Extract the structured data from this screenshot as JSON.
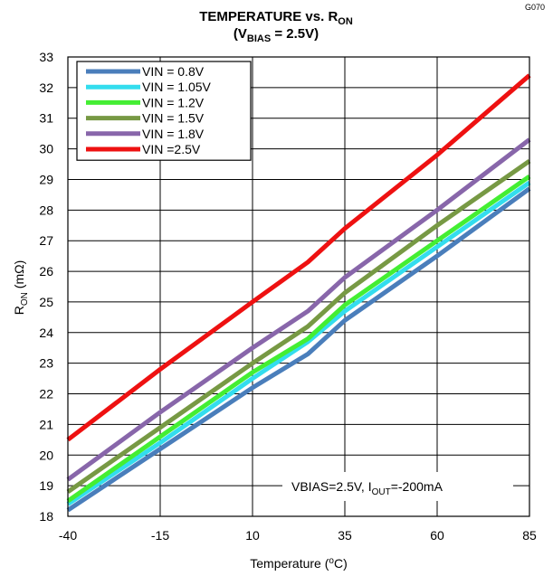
{
  "figure_id": "G070",
  "title_line1": "TEMPERATURE vs. R",
  "title_line1_sub": "ON",
  "title_line2_pre": "(V",
  "title_line2_sub": "BIAS",
  "title_line2_post": " = 2.5V)",
  "ylabel_main": "R",
  "ylabel_sub": "ON",
  "ylabel_post": " (mΩ)",
  "xlabel_pre": "Temperature (",
  "xlabel_sup": "o",
  "xlabel_post": "C)",
  "annotation": {
    "pre": "VBIAS=2.5V, I",
    "sub": "OUT",
    "post": "=-200mA"
  },
  "chart_data": {
    "type": "line",
    "title": "TEMPERATURE vs. RON (VBIAS = 2.5V)",
    "xlabel": "Temperature (oC)",
    "ylabel": "RON (mΩ)",
    "xlim": [
      -40,
      85
    ],
    "ylim": [
      18,
      33
    ],
    "x_ticks": [
      -40,
      -15,
      10,
      35,
      60,
      85
    ],
    "y_ticks": [
      18,
      19,
      20,
      21,
      22,
      23,
      24,
      25,
      26,
      27,
      28,
      29,
      30,
      31,
      32,
      33
    ],
    "grid": true,
    "legend_position": "top-left",
    "x": [
      -40,
      -15,
      10,
      25,
      35,
      60,
      85
    ],
    "series": [
      {
        "name": "VIN = 0.8V",
        "color": "#4A7EBB",
        "values": [
          18.2,
          20.2,
          22.2,
          23.3,
          24.4,
          26.5,
          28.7
        ]
      },
      {
        "name": "VIN = 1.05V",
        "color": "#33DDEE",
        "values": [
          18.4,
          20.4,
          22.5,
          23.7,
          24.7,
          26.8,
          28.9
        ]
      },
      {
        "name": "VIN = 1.2V",
        "color": "#44EE33",
        "values": [
          18.5,
          20.6,
          22.7,
          23.8,
          24.9,
          27.0,
          29.1
        ]
      },
      {
        "name": "VIN = 1.5V",
        "color": "#779944",
        "values": [
          18.8,
          20.9,
          23.0,
          24.2,
          25.3,
          27.5,
          29.6
        ]
      },
      {
        "name": "VIN = 1.8V",
        "color": "#8866AA",
        "values": [
          19.2,
          21.4,
          23.5,
          24.7,
          25.8,
          28.0,
          30.3
        ]
      },
      {
        "name": "VIN =2.5V",
        "color": "#EE1111",
        "values": [
          20.5,
          22.8,
          25.0,
          26.3,
          27.4,
          29.8,
          32.4
        ]
      }
    ]
  }
}
